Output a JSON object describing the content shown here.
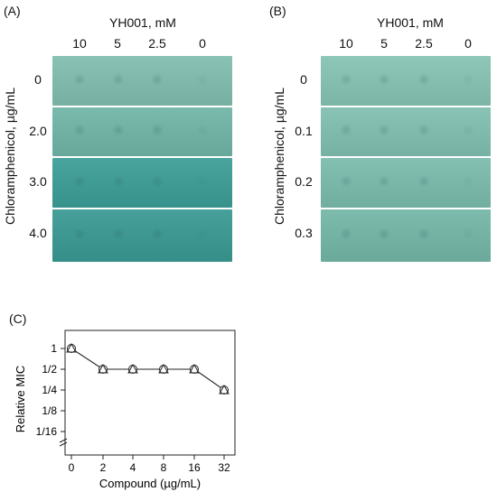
{
  "panelA": {
    "label": "(A)",
    "compound_title": "YH001, mM",
    "concentrations": [
      "10",
      "5",
      "2.5",
      "0"
    ],
    "ylabel": "Chloramphenicol, µg/mL",
    "rows": [
      "0",
      "2.0",
      "3.0",
      "4.0"
    ],
    "plate_colors": [
      "#7fb8aa",
      "#6fb0a2",
      "#3f9a94",
      "#3d9690"
    ]
  },
  "panelB": {
    "label": "(B)",
    "compound_title": "YH001, mM",
    "concentrations": [
      "10",
      "5",
      "2.5",
      "0"
    ],
    "ylabel": "Chloramphenicol, µg/mL",
    "rows": [
      "0",
      "0.1",
      "0.2",
      "0.3"
    ],
    "plate_colors": [
      "#84bdae",
      "#7fb9ab",
      "#7ab6a8",
      "#73b1a3"
    ]
  },
  "panelC": {
    "label": "(C)",
    "chart_data": {
      "type": "line",
      "xlabel": "Compound (µg/mL)",
      "ylabel": "Relative MIC",
      "x": [
        "0",
        "2",
        "4",
        "8",
        "16",
        "32"
      ],
      "y_tick_labels": [
        "1",
        "1/2",
        "1/4",
        "1/8",
        "1/16"
      ],
      "y_tick_values": [
        1,
        0.5,
        0.25,
        0.125,
        0.0625
      ],
      "y_scale": "log2",
      "series": [
        {
          "marker": "circle",
          "values": [
            1,
            0.5,
            0.5,
            0.5,
            0.5,
            0.25
          ]
        },
        {
          "marker": "triangle",
          "values": [
            1,
            0.5,
            0.5,
            0.5,
            0.5,
            0.25
          ]
        }
      ],
      "grid": false,
      "axis_break_y": true
    }
  }
}
